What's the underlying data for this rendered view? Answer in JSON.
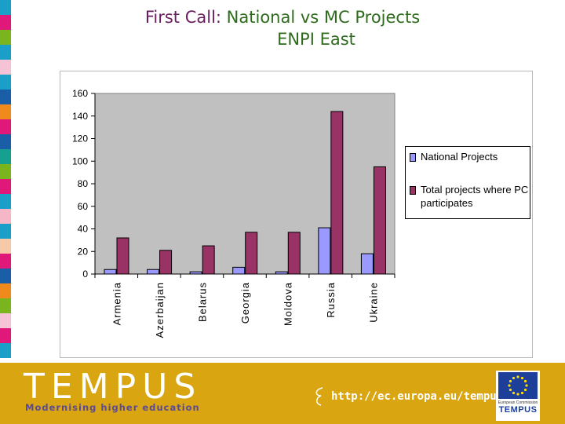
{
  "slide": {
    "title_prefix": "First Call:",
    "title_main": "National vs MC Projects",
    "title_sub": "ENPI East"
  },
  "chart_data": {
    "type": "bar",
    "categories": [
      "Armenia",
      "Azerbaijan",
      "Belarus",
      "Georgia",
      "Moldova",
      "Russia",
      "Ukraine"
    ],
    "series": [
      {
        "name": "National Projects",
        "values": [
          4,
          4,
          2,
          6,
          2,
          41,
          18
        ],
        "color": "#9999ff"
      },
      {
        "name": "Total projects where PC participates",
        "values": [
          32,
          21,
          25,
          37,
          37,
          144,
          95
        ],
        "color": "#993366"
      }
    ],
    "yticks": [
      0,
      20,
      40,
      60,
      80,
      100,
      120,
      140,
      160
    ],
    "ylim": [
      0,
      160
    ],
    "grid": false,
    "plot_background": "#c0c0c0",
    "legend_position": "right"
  },
  "footer": {
    "logo": "TEMPUS",
    "tagline": "Modernising higher education",
    "url": "http://ec.europa.eu/tempus",
    "badge_commission": "European Commission",
    "badge_logo": "TEMPUS",
    "background": "#d9a510"
  },
  "stripe_colors": [
    "#1aa0c8",
    "#e0187a",
    "#7ab51d",
    "#1aa0c8",
    "#f6c3d6",
    "#1aa0c8",
    "#1a5ea8",
    "#f08a1c",
    "#e0187a",
    "#1a5ea8",
    "#16a090",
    "#7ab51d",
    "#e0187a",
    "#1aa0c8",
    "#f5b7c8",
    "#1aa0c8",
    "#f6c9a8",
    "#e0187a",
    "#1a5ea8",
    "#f08a1c",
    "#7ab51d",
    "#f6c3d6",
    "#e0187a",
    "#1aa0c8"
  ]
}
